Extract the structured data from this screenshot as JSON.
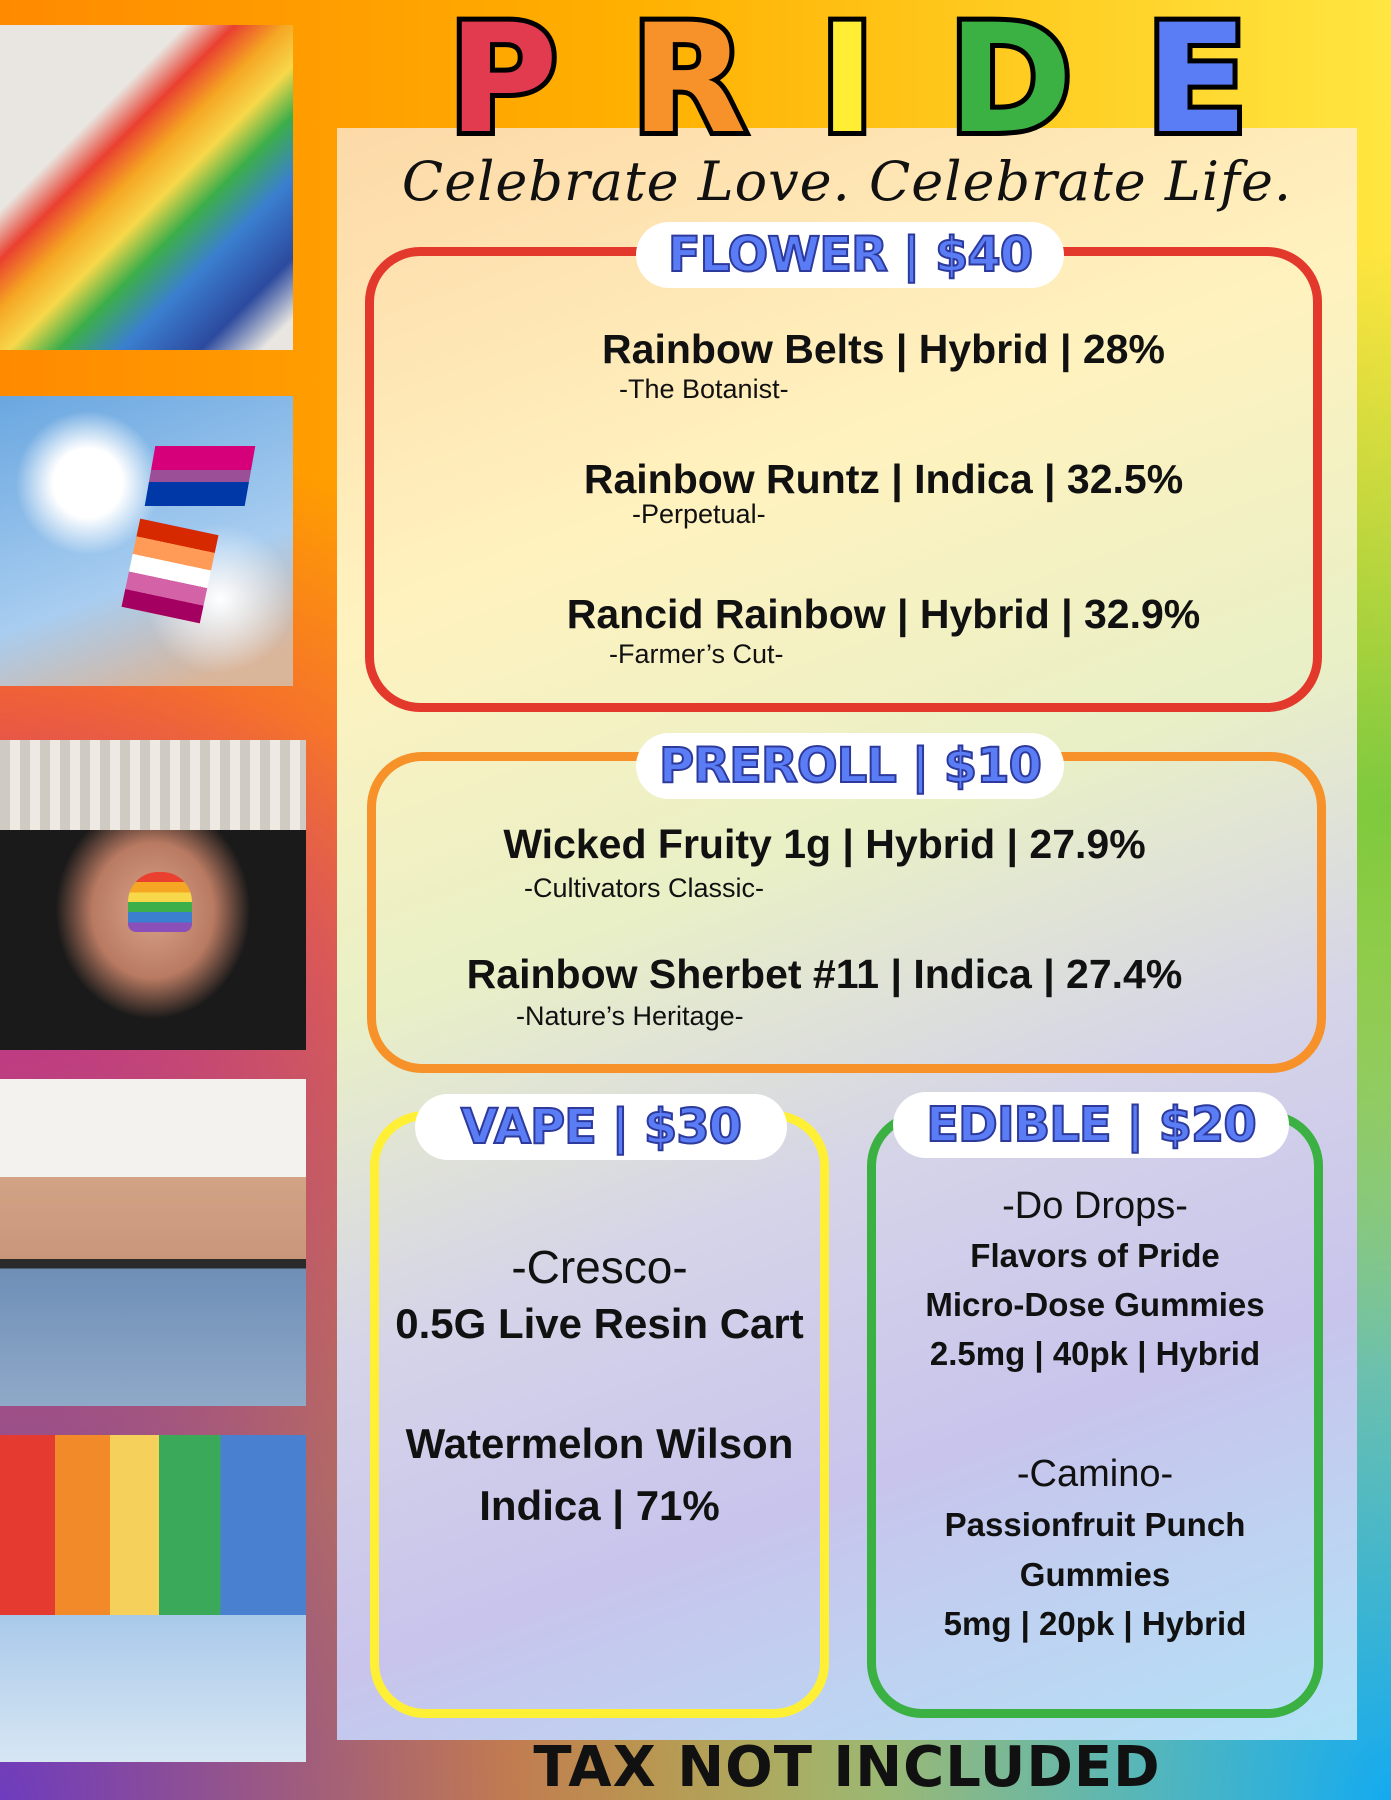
{
  "header": {
    "letters": [
      "P",
      "R",
      "I",
      "D",
      "E"
    ],
    "letter_colors": [
      "#e23a4f",
      "#f7922a",
      "#ffee33",
      "#3bb043",
      "#5a7cf5"
    ],
    "tagline": "Celebrate Love. Celebrate Life."
  },
  "photos": [
    {
      "name": "rainbow-painted-hands-photo"
    },
    {
      "name": "pride-flags-sky-photo"
    },
    {
      "name": "rainbow-heart-hands-photo"
    },
    {
      "name": "rainbow-stickers-couple-photo"
    },
    {
      "name": "pride-flag-woman-photo"
    }
  ],
  "flower": {
    "label": "FLOWER | $40",
    "border_color": "#e3392c",
    "items": [
      {
        "title": "Rainbow Belts | Hybrid | 28%",
        "brand": "-The Botanist-"
      },
      {
        "title": "Rainbow Runtz | Indica | 32.5%",
        "brand": "-Perpetual-"
      },
      {
        "title": "Rancid Rainbow | Hybrid | 32.9%",
        "brand": "-Farmer’s Cut-"
      }
    ]
  },
  "preroll": {
    "label": "PREROLL | $10",
    "border_color": "#f7922a",
    "items": [
      {
        "title": "Wicked Fruity 1g | Hybrid | 27.9%",
        "brand": "-Cultivators Classic-"
      },
      {
        "title": "Rainbow Sherbet #11 | Indica | 27.4%",
        "brand": "-Nature’s Heritage-"
      }
    ]
  },
  "vape": {
    "label": "VAPE  | $30",
    "border_color": "#fff035",
    "brand": "-Cresco-",
    "product": "0.5G Live Resin Cart",
    "item2_line1": "Watermelon Wilson",
    "item2_line2": "Indica | 71%"
  },
  "edible": {
    "label": "EDIBLE  | $20",
    "border_color": "#3bb043",
    "items": [
      {
        "brand": "-Do Drops-",
        "lines": [
          "Flavors of Pride",
          "Micro-Dose Gummies",
          "2.5mg | 40pk | Hybrid"
        ]
      },
      {
        "brand": "-Camino-",
        "lines": [
          "Passionfruit Punch",
          "Gummies",
          "5mg | 20pk | Hybrid"
        ]
      }
    ]
  },
  "footer": {
    "text": "TAX NOT INCLUDED"
  }
}
